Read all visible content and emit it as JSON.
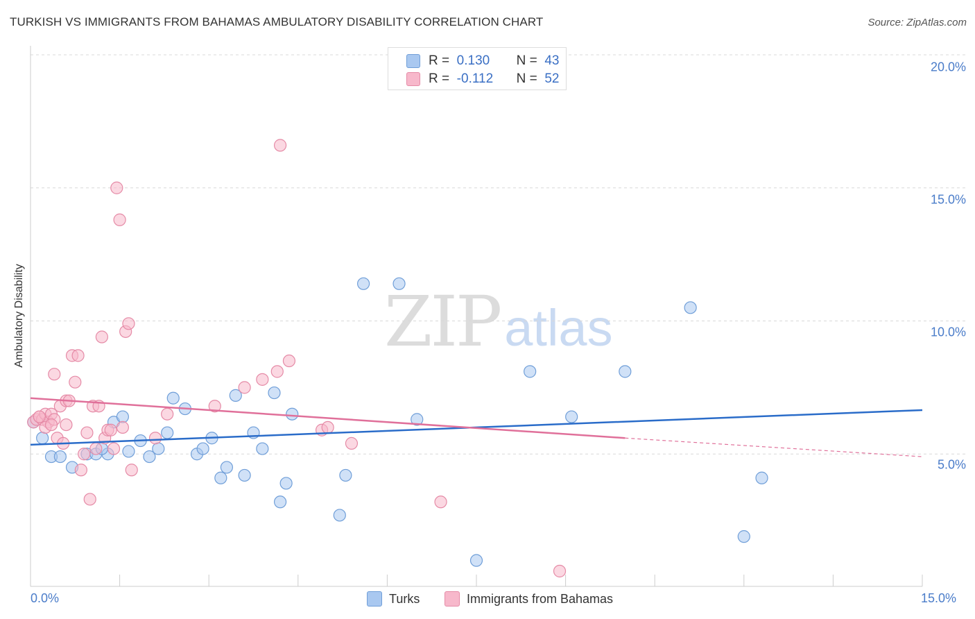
{
  "header": {
    "title": "TURKISH VS IMMIGRANTS FROM BAHAMAS AMBULATORY DISABILITY CORRELATION CHART",
    "source": "Source: ZipAtlas.com"
  },
  "watermark": {
    "zip": "ZIP",
    "atlas": "atlas"
  },
  "legend": {
    "r_label": "R =",
    "n_label": "N =",
    "series": [
      {
        "name": "Turks",
        "r": "0.130",
        "n": "43"
      },
      {
        "name": "Immigrants from Bahamas",
        "r": "-0.112",
        "n": "52"
      }
    ]
  },
  "colors": {
    "turks_fill": "#a9c8f0",
    "turks_stroke": "#6f9ed8",
    "turks_line": "#2a6cc9",
    "bahamas_fill": "#f7b8cb",
    "bahamas_stroke": "#e58aa6",
    "bahamas_line": "#e0709a",
    "grid": "#d8d8d8",
    "tick_text": "#4a7cc9"
  },
  "chart_data": {
    "type": "scatter",
    "title": "TURKISH VS IMMIGRANTS FROM BAHAMAS AMBULATORY DISABILITY CORRELATION CHART",
    "xlabel": "",
    "ylabel": "Ambulatory Disability",
    "xlim": [
      0,
      15
    ],
    "ylim": [
      0,
      20
    ],
    "x_tick_labels": [
      "0.0%",
      "15.0%"
    ],
    "y_ticks": [
      5,
      10,
      15,
      20
    ],
    "y_tick_labels": [
      "5.0%",
      "10.0%",
      "15.0%",
      "20.0%"
    ],
    "grid": "horizontal dashed",
    "legend_position": "top-center",
    "series": [
      {
        "name": "Turks",
        "points": [
          [
            0.05,
            6.2
          ],
          [
            0.2,
            5.6
          ],
          [
            0.35,
            4.9
          ],
          [
            0.5,
            4.9
          ],
          [
            0.7,
            4.5
          ],
          [
            0.95,
            5.0
          ],
          [
            1.1,
            5.0
          ],
          [
            1.3,
            5.0
          ],
          [
            1.4,
            6.2
          ],
          [
            1.55,
            6.4
          ],
          [
            1.65,
            5.1
          ],
          [
            1.85,
            5.5
          ],
          [
            2.0,
            4.9
          ],
          [
            2.15,
            5.2
          ],
          [
            2.3,
            5.8
          ],
          [
            2.4,
            7.1
          ],
          [
            2.6,
            6.7
          ],
          [
            2.8,
            5.0
          ],
          [
            2.9,
            5.2
          ],
          [
            3.05,
            5.6
          ],
          [
            3.2,
            4.1
          ],
          [
            3.3,
            4.5
          ],
          [
            3.45,
            7.2
          ],
          [
            3.6,
            4.2
          ],
          [
            3.75,
            5.8
          ],
          [
            3.9,
            5.2
          ],
          [
            4.1,
            7.3
          ],
          [
            4.2,
            3.2
          ],
          [
            4.3,
            3.9
          ],
          [
            4.4,
            6.5
          ],
          [
            5.2,
            2.7
          ],
          [
            5.3,
            4.2
          ],
          [
            5.6,
            11.4
          ],
          [
            6.2,
            11.4
          ],
          [
            6.5,
            6.3
          ],
          [
            7.5,
            1.0
          ],
          [
            8.4,
            8.1
          ],
          [
            9.1,
            6.4
          ],
          [
            10.0,
            8.1
          ],
          [
            11.1,
            10.5
          ],
          [
            12.0,
            1.9
          ],
          [
            12.3,
            4.1
          ],
          [
            1.2,
            5.2
          ]
        ]
      },
      {
        "name": "Immigrants from Bahamas",
        "points": [
          [
            0.05,
            6.2
          ],
          [
            0.1,
            6.3
          ],
          [
            0.15,
            6.4
          ],
          [
            0.2,
            6.3
          ],
          [
            0.25,
            6.5
          ],
          [
            0.3,
            6.2
          ],
          [
            0.35,
            6.5
          ],
          [
            0.4,
            6.3
          ],
          [
            0.4,
            8.0
          ],
          [
            0.45,
            5.6
          ],
          [
            0.5,
            6.8
          ],
          [
            0.55,
            5.4
          ],
          [
            0.6,
            7.0
          ],
          [
            0.65,
            7.0
          ],
          [
            0.7,
            8.7
          ],
          [
            0.75,
            7.7
          ],
          [
            0.8,
            8.7
          ],
          [
            0.85,
            4.4
          ],
          [
            0.9,
            5.0
          ],
          [
            0.95,
            5.8
          ],
          [
            1.0,
            3.3
          ],
          [
            1.05,
            6.8
          ],
          [
            1.1,
            5.2
          ],
          [
            1.15,
            6.8
          ],
          [
            1.2,
            9.4
          ],
          [
            1.25,
            5.6
          ],
          [
            1.3,
            5.9
          ],
          [
            1.35,
            5.9
          ],
          [
            1.4,
            5.2
          ],
          [
            1.45,
            15.0
          ],
          [
            1.5,
            13.8
          ],
          [
            1.55,
            6.0
          ],
          [
            1.6,
            9.6
          ],
          [
            1.65,
            9.9
          ],
          [
            1.7,
            4.4
          ],
          [
            2.1,
            5.6
          ],
          [
            2.3,
            6.5
          ],
          [
            3.1,
            6.8
          ],
          [
            3.6,
            7.5
          ],
          [
            3.9,
            7.8
          ],
          [
            4.15,
            8.1
          ],
          [
            4.2,
            16.6
          ],
          [
            4.35,
            8.5
          ],
          [
            4.9,
            5.9
          ],
          [
            5.0,
            6.0
          ],
          [
            5.4,
            5.4
          ],
          [
            6.9,
            3.2
          ],
          [
            8.9,
            0.6
          ],
          [
            0.15,
            6.4
          ],
          [
            0.25,
            6.0
          ],
          [
            0.35,
            6.1
          ],
          [
            0.6,
            6.1
          ]
        ]
      }
    ],
    "trendlines": [
      {
        "series": "Turks",
        "x": [
          0,
          15
        ],
        "y": [
          5.35,
          6.65
        ]
      },
      {
        "series": "Immigrants from Bahamas",
        "x": [
          0,
          10
        ],
        "y": [
          7.1,
          5.6
        ],
        "dashed_to": [
          15,
          4.9
        ]
      }
    ]
  }
}
